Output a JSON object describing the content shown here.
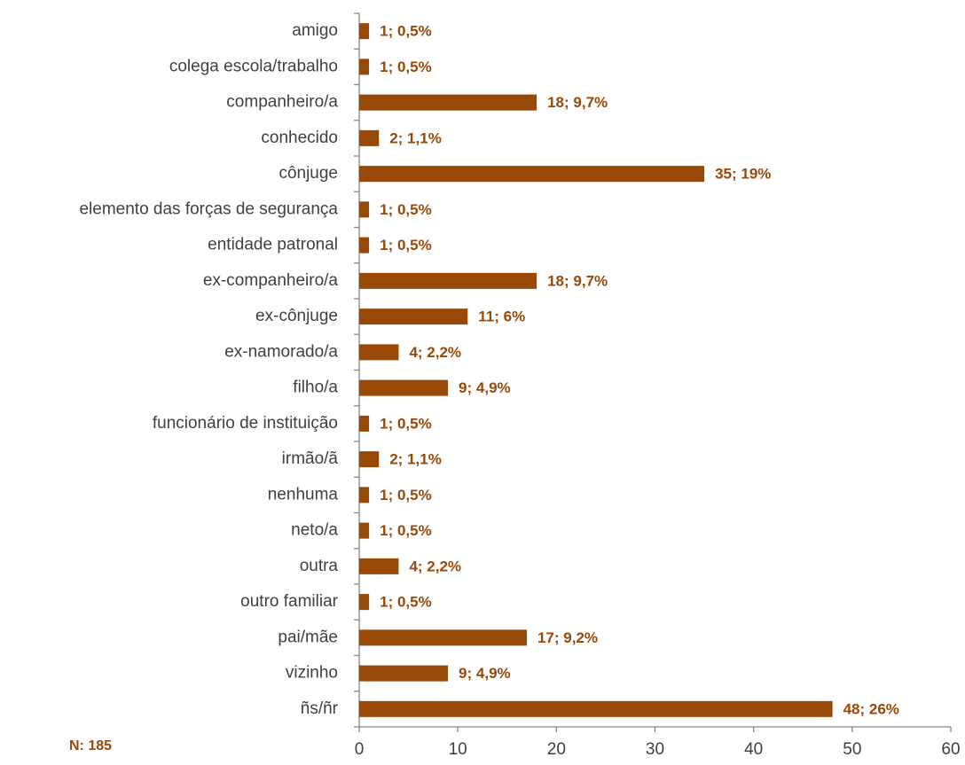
{
  "chart_data": {
    "type": "barh",
    "categories": [
      "amigo",
      "colega escola/trabalho",
      "companheiro/a",
      "conhecido",
      "cônjuge",
      "elemento das forças de segurança",
      "entidade patronal",
      "ex-companheiro/a",
      "ex-cônjuge",
      "ex-namorado/a",
      "filho/a",
      "funcionário de instituição",
      "irmão/ã",
      "nenhuma",
      "neto/a",
      "outra",
      "outro familiar",
      "pai/mãe",
      "vizinho",
      "ñs/ñr"
    ],
    "values": [
      1,
      1,
      18,
      2,
      35,
      1,
      1,
      18,
      11,
      4,
      9,
      1,
      2,
      1,
      1,
      4,
      1,
      17,
      9,
      48
    ],
    "value_labels": [
      "1; 0,5%",
      "1; 0,5%",
      "18; 9,7%",
      "2; 1,1%",
      "35; 19%",
      "1; 0,5%",
      "1; 0,5%",
      "18; 9,7%",
      "11; 6%",
      "4; 2,2%",
      "9; 4,9%",
      "1; 0,5%",
      "2; 1,1%",
      "1; 0,5%",
      "1; 0,5%",
      "4; 2,2%",
      "1; 0,5%",
      "17; 9,2%",
      "9; 4,9%",
      "48; 26%"
    ],
    "color": "#984807",
    "xlim": [
      0,
      60
    ],
    "xticks": [
      0,
      10,
      20,
      30,
      40,
      50,
      60
    ],
    "annotation": "N: 185"
  }
}
